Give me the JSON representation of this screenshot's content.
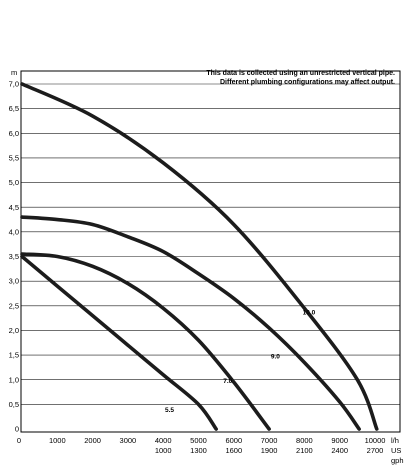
{
  "chart_data": {
    "type": "line",
    "title": "",
    "notes": [
      "This data is collected using an unrestricted vertical pipe.",
      "Different plumbing configurations may affect output."
    ],
    "y_unit": "m",
    "x_unit_primary": "l/h",
    "x_unit_secondary_1": "US",
    "x_unit_secondary_2": "gph",
    "ylim": [
      0,
      7.0
    ],
    "xlim": [
      0,
      10000
    ],
    "y_ticks": [
      "0",
      "0,5",
      "1,0",
      "1,5",
      "2,0",
      "2,5",
      "3,0",
      "3,5",
      "4,0",
      "4,5",
      "5,0",
      "5,5",
      "6,0",
      "6,5",
      "7,0"
    ],
    "x_ticks": [
      {
        "value": 0,
        "lph": "0",
        "gph": ""
      },
      {
        "value": 1000,
        "lph": "1000",
        "gph": ""
      },
      {
        "value": 2000,
        "lph": "2000",
        "gph": ""
      },
      {
        "value": 3000,
        "lph": "3000",
        "gph": ""
      },
      {
        "value": 4000,
        "lph": "4000",
        "gph": "1000"
      },
      {
        "value": 5000,
        "lph": "5000",
        "gph": "1300"
      },
      {
        "value": 6000,
        "lph": "6000",
        "gph": "1600"
      },
      {
        "value": 7000,
        "lph": "7000",
        "gph": "1900"
      },
      {
        "value": 8000,
        "lph": "8000",
        "gph": "2100"
      },
      {
        "value": 9000,
        "lph": "9000",
        "gph": "2400"
      },
      {
        "value": 10000,
        "lph": "10000",
        "gph": "2700"
      }
    ],
    "grid": "horizontal",
    "series": [
      {
        "name": "10.0",
        "x": [
          0,
          2000,
          4000,
          6000,
          8000,
          9500,
          10050
        ],
        "y": [
          7.0,
          6.35,
          5.4,
          4.15,
          2.45,
          1.0,
          0
        ]
      },
      {
        "name": "9.0",
        "x": [
          0,
          1000,
          2000,
          3000,
          4000,
          5000,
          6000,
          7000,
          8000,
          9000,
          9550
        ],
        "y": [
          4.3,
          4.25,
          4.15,
          3.9,
          3.6,
          3.15,
          2.65,
          2.05,
          1.35,
          0.55,
          0
        ]
      },
      {
        "name": "7.0",
        "x": [
          0,
          1000,
          2000,
          3000,
          4000,
          5000,
          6000,
          7000
        ],
        "y": [
          3.55,
          3.5,
          3.3,
          2.95,
          2.45,
          1.8,
          0.95,
          0
        ]
      },
      {
        "name": "5.5",
        "x": [
          0,
          1000,
          2000,
          3000,
          4000,
          5000,
          5500
        ],
        "y": [
          3.5,
          2.9,
          2.3,
          1.7,
          1.1,
          0.5,
          0
        ]
      }
    ]
  }
}
